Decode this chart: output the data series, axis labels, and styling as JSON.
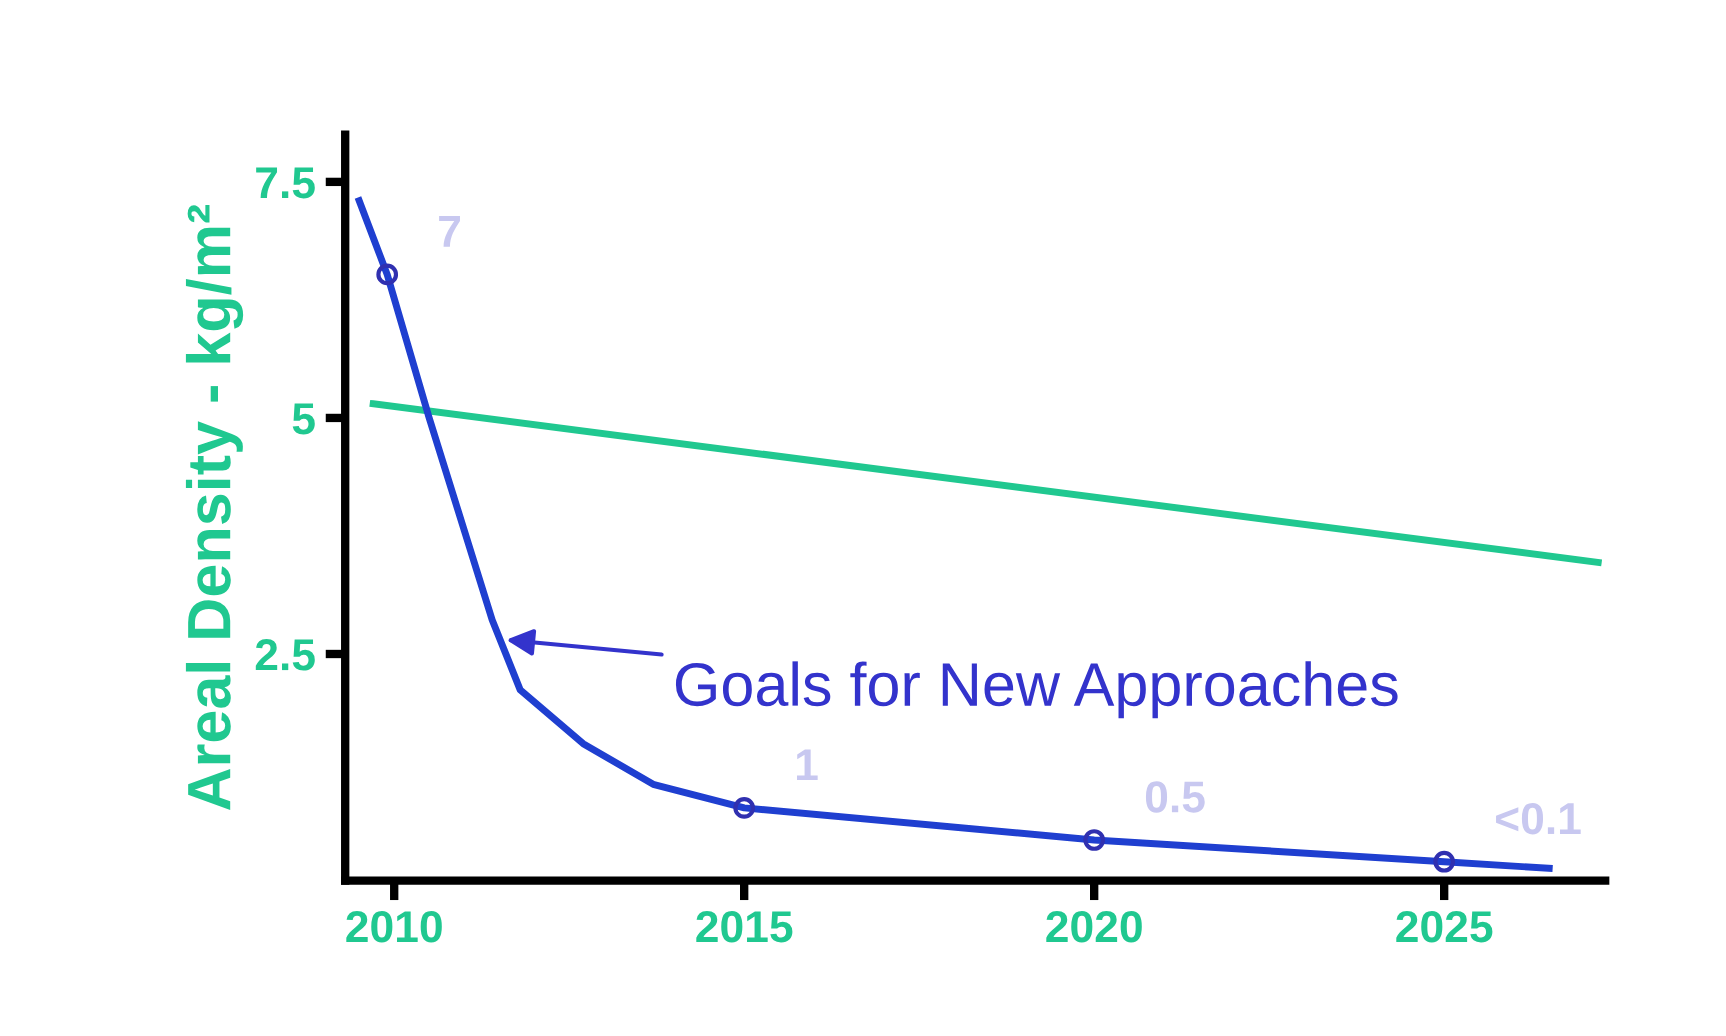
{
  "chart_data": {
    "type": "line",
    "ylabel": "Areal Density - kg/m²",
    "xlim": [
      2009.3,
      2027.3
    ],
    "ylim": [
      0.1,
      8
    ],
    "xticks": [
      2010,
      2015,
      2020,
      2025
    ],
    "yticks": [
      2.5,
      5,
      7.5
    ],
    "series": [
      {
        "color": "#20c890",
        "x": [
          2009.7,
          2027.2
        ],
        "values": [
          5.15,
          3.47
        ]
      },
      {
        "color": "#1f3fd0",
        "x": [
          2009.5,
          2009.9,
          2010.5,
          2011.4,
          2011.8,
          2012.7,
          2013.7,
          2015,
          2020,
          2025,
          2026.5
        ],
        "values": [
          7.3,
          6.52,
          5.0,
          2.86,
          2.12,
          1.55,
          1.12,
          0.87,
          0.53,
          0.3,
          0.23
        ]
      },
      {
        "type": "scatter",
        "marker": "circle",
        "color": "#3030b0",
        "x": [
          2009.9,
          2015,
          2020,
          2025
        ],
        "values": [
          6.52,
          0.87,
          0.53,
          0.3
        ]
      }
    ],
    "annotations": [
      {
        "text": "7",
        "x": 2009.9,
        "y": 6.52
      },
      {
        "text": "1",
        "x": 2015,
        "y": 0.87
      },
      {
        "text": "0.5",
        "x": 2020,
        "y": 0.53
      },
      {
        "text": "<0.1",
        "x": 2025,
        "y": 0.3
      },
      {
        "text": "Goals for New Approaches",
        "x": 2011.6,
        "y": 2.65
      }
    ],
    "grid": false,
    "legend": false
  }
}
